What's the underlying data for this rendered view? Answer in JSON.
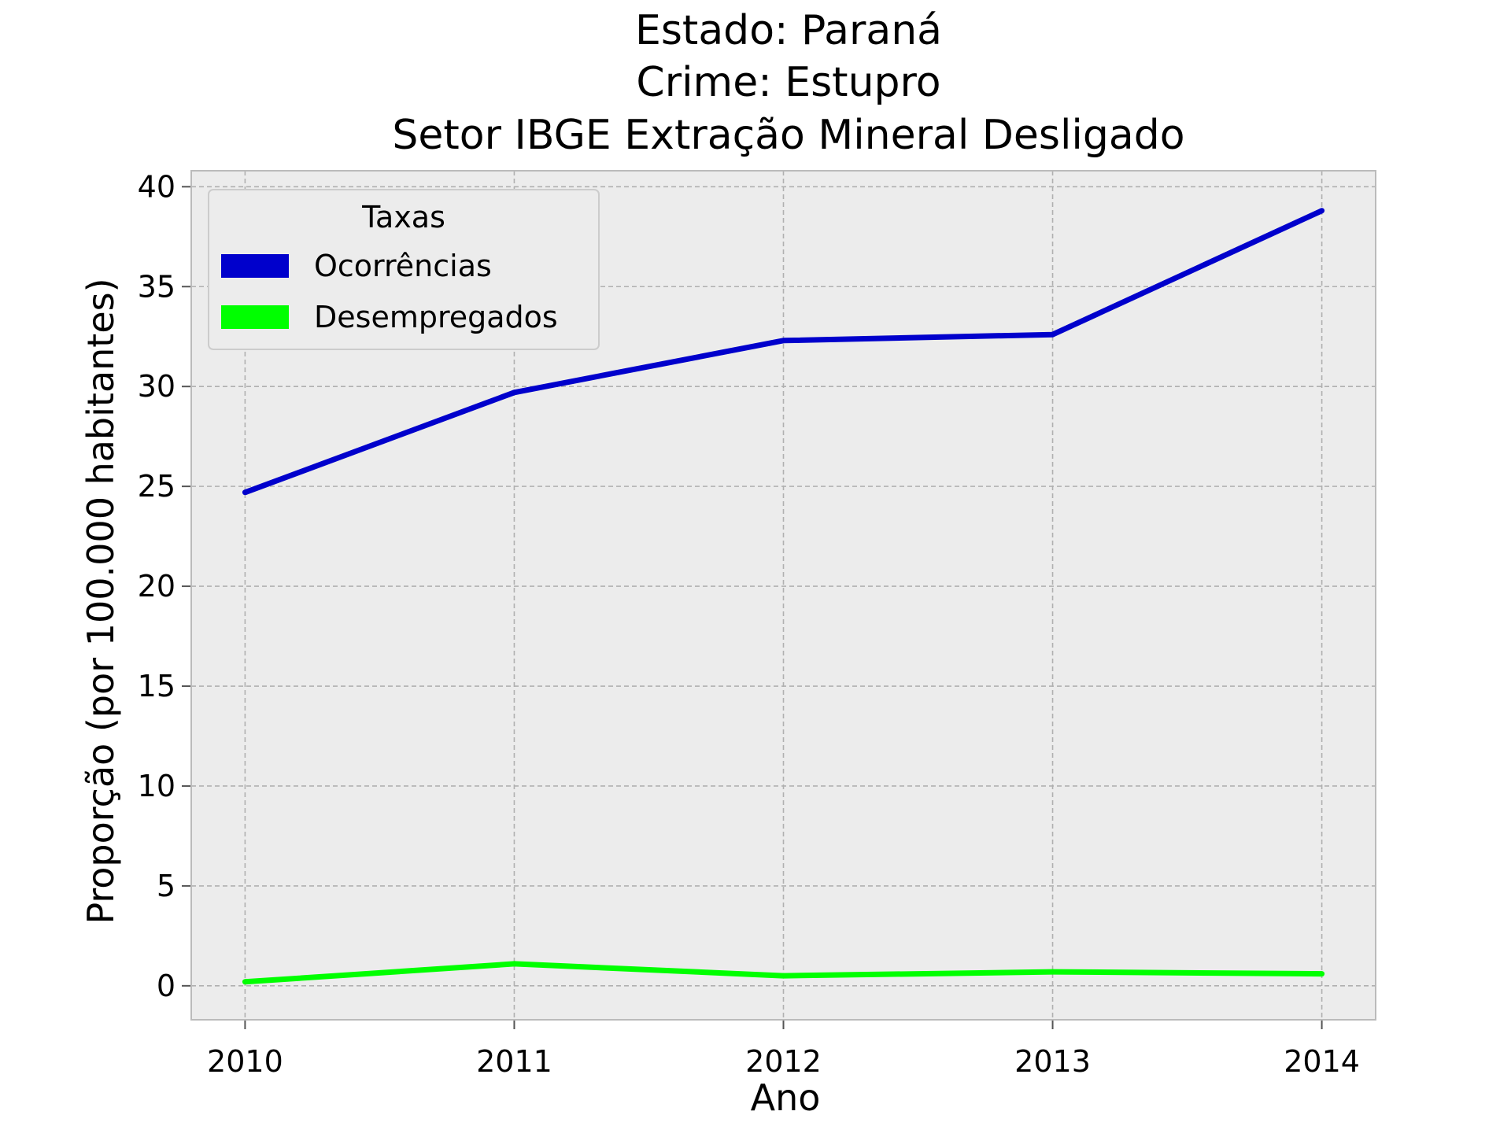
{
  "chart_data": {
    "type": "line",
    "title_lines": [
      "Estado: Paraná",
      "Crime: Estupro",
      "Setor IBGE  Extração Mineral   Desligado"
    ],
    "xlabel": "Ano",
    "ylabel": "Proporção (por 100.000 habitantes)",
    "x": [
      2010,
      2011,
      2012,
      2013,
      2014
    ],
    "x_ticks": [
      "2010",
      "2011",
      "2012",
      "2013",
      "2014"
    ],
    "y_ticks": [
      "0",
      "5",
      "10",
      "15",
      "20",
      "25",
      "30",
      "35",
      "40"
    ],
    "xlim": [
      2009.8,
      2014.2
    ],
    "ylim": [
      -1.7,
      40.8
    ],
    "grid": true,
    "legend": {
      "title": "Taxas",
      "placement": "upper-left"
    },
    "series": [
      {
        "name": "Ocorrências",
        "color": "#0000cc",
        "values": [
          24.7,
          29.7,
          32.3,
          32.6,
          38.8
        ]
      },
      {
        "name": "Desempregados",
        "color": "#00ff00",
        "values": [
          0.2,
          1.1,
          0.5,
          0.7,
          0.6
        ]
      }
    ],
    "colors": {
      "plot_background": "#ececec",
      "grid": "#b0b0b0",
      "frame": "#bbbbbb"
    }
  }
}
